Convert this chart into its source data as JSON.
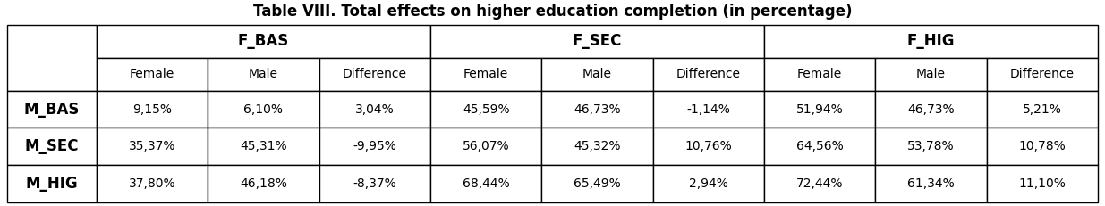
{
  "title": "Table VIII. Total effects on higher education completion (in percentage)",
  "col_groups": [
    "F_BAS",
    "F_SEC",
    "F_HIG"
  ],
  "sub_cols": [
    "Female",
    "Male",
    "Difference"
  ],
  "row_labels": [
    "M_BAS",
    "M_SEC",
    "M_HIG"
  ],
  "data": [
    [
      "9,15%",
      "6,10%",
      "3,04%",
      "45,59%",
      "46,73%",
      "-1,14%",
      "51,94%",
      "46,73%",
      "5,21%"
    ],
    [
      "35,37%",
      "45,31%",
      "-9,95%",
      "56,07%",
      "45,32%",
      "10,76%",
      "64,56%",
      "53,78%",
      "10,78%"
    ],
    [
      "37,80%",
      "46,18%",
      "-8,37%",
      "68,44%",
      "65,49%",
      "2,94%",
      "72,44%",
      "61,34%",
      "11,10%"
    ]
  ],
  "background_color": "#ffffff",
  "border_color": "#000000",
  "title_fontsize": 12,
  "group_header_fontsize": 12,
  "sub_header_fontsize": 10,
  "row_label_fontsize": 12,
  "cell_fontsize": 10,
  "fig_width": 12.35,
  "fig_height": 2.31,
  "dpi": 100
}
